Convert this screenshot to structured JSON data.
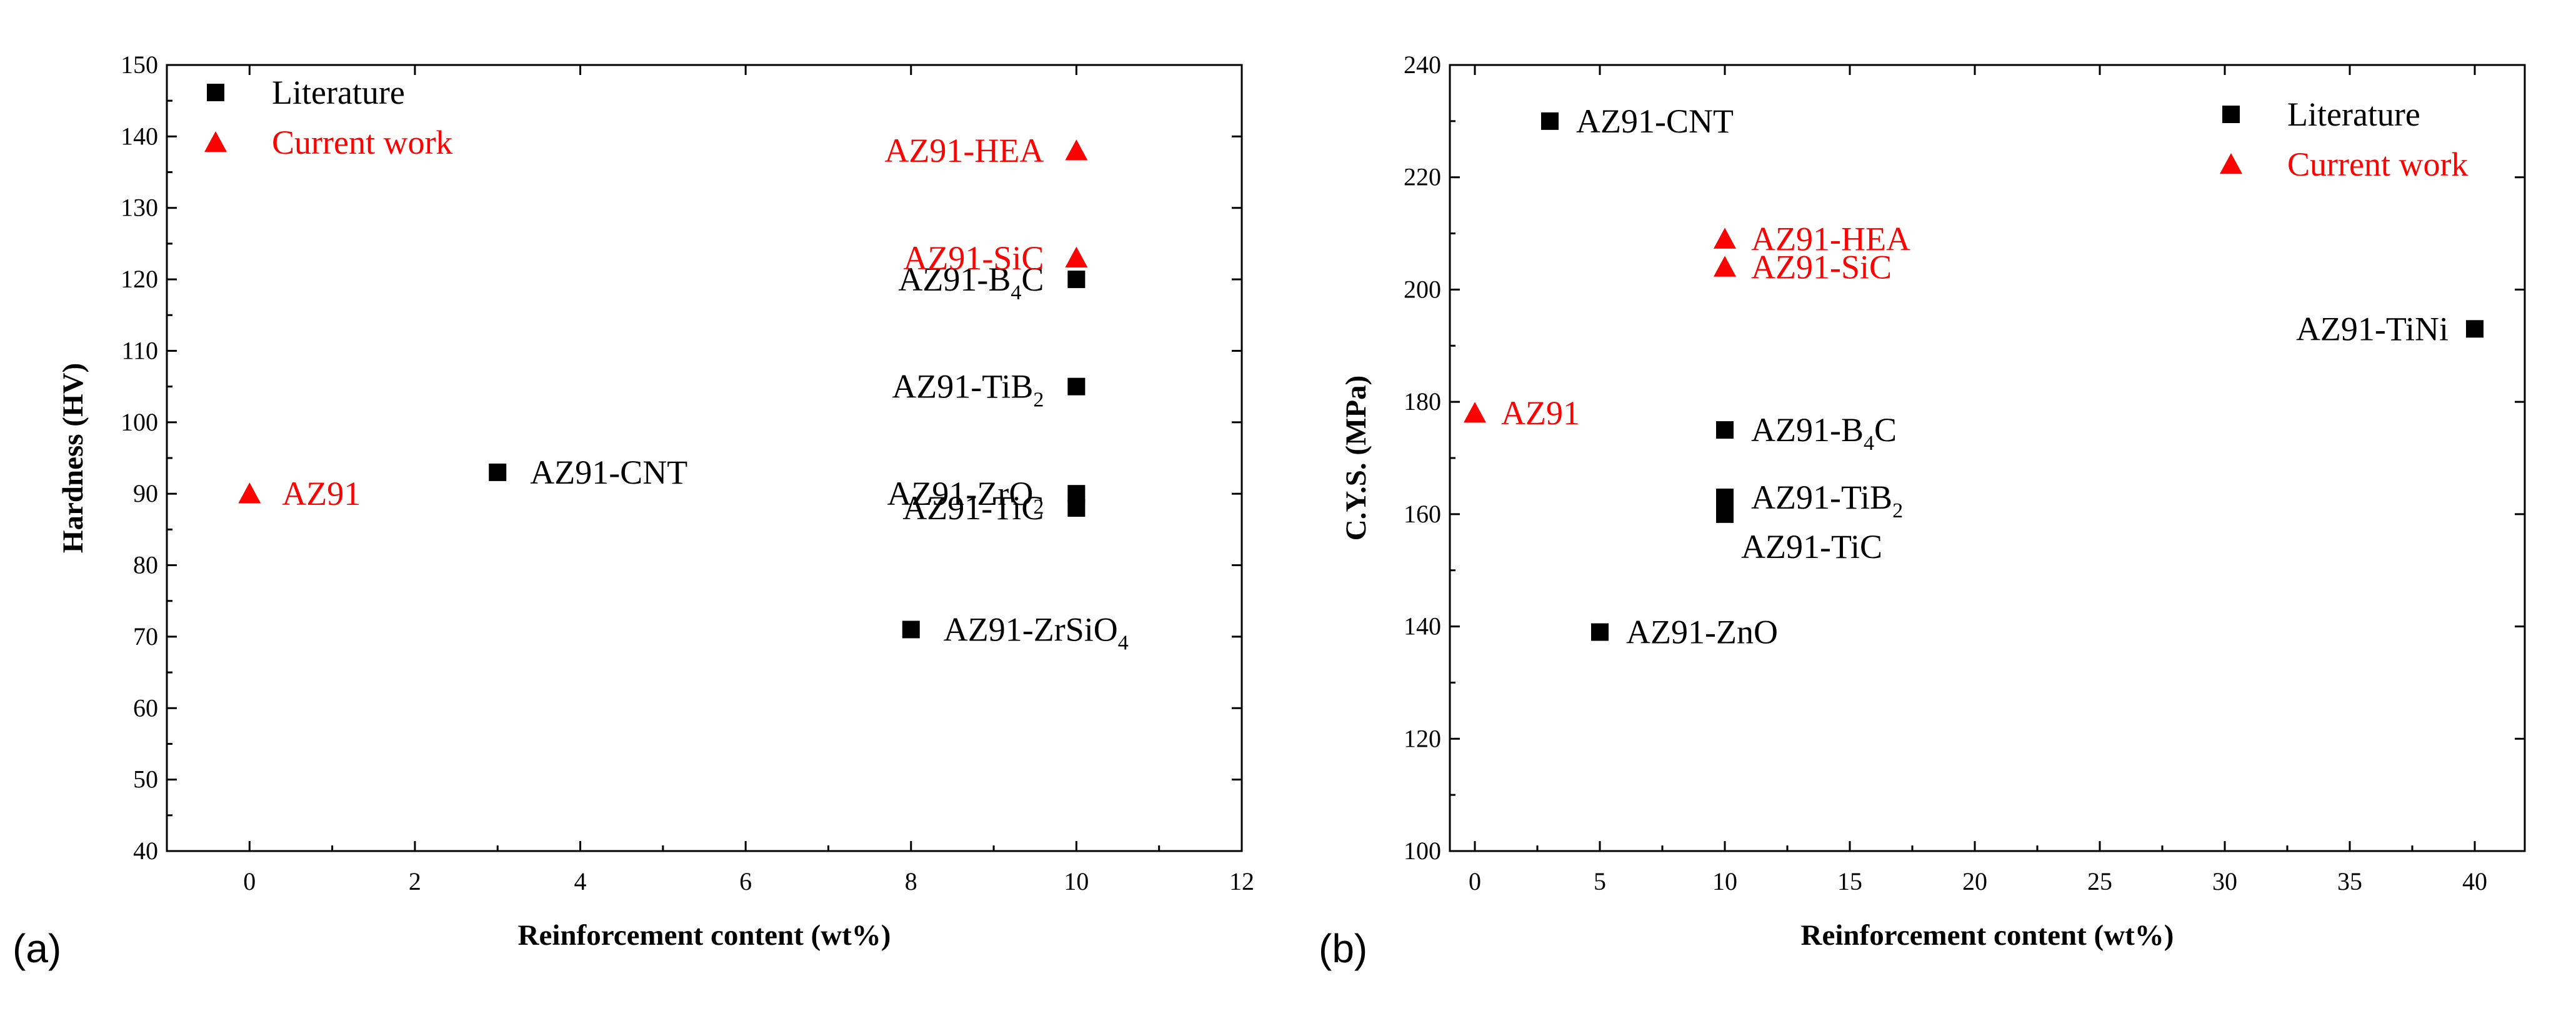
{
  "chart_data": [
    {
      "panel": "(a)",
      "type": "scatter",
      "xlabel": "Reinforcement content (wt%)",
      "ylabel": "Hardness (HV)",
      "xlim": [
        -1,
        12
      ],
      "ylim": [
        40,
        150
      ],
      "xticks": [
        0,
        2,
        4,
        6,
        8,
        10,
        12
      ],
      "yticks": [
        40,
        50,
        60,
        70,
        80,
        90,
        100,
        110,
        120,
        130,
        140,
        150
      ],
      "legend": {
        "position": "top-left",
        "entries": [
          {
            "label": "Literature",
            "marker": "square",
            "color": "#000000"
          },
          {
            "label": "Current work",
            "marker": "triangle",
            "color": "#ff0000"
          }
        ]
      },
      "series": [
        {
          "name": "Literature",
          "marker": "square",
          "color": "#000000",
          "points": [
            {
              "x": 3,
              "y": 93,
              "base": "AZ91-CNT",
              "sub": "",
              "suffix": "",
              "label_side": "right"
            },
            {
              "x": 10,
              "y": 120,
              "base": "AZ91-B",
              "sub": "4",
              "suffix": "C",
              "label_side": "left"
            },
            {
              "x": 10,
              "y": 105,
              "base": "AZ91-TiB",
              "sub": "2",
              "suffix": "",
              "label_side": "left"
            },
            {
              "x": 10,
              "y": 90,
              "base": "AZ91-ZrO",
              "sub": "2",
              "suffix": "",
              "label_side": "left"
            },
            {
              "x": 10,
              "y": 88,
              "base": "AZ91-TiC",
              "sub": "",
              "suffix": "",
              "label_side": "left"
            },
            {
              "x": 8,
              "y": 71,
              "base": "AZ91-ZrSiO",
              "sub": "4",
              "suffix": "",
              "label_side": "right"
            }
          ]
        },
        {
          "name": "Current work",
          "marker": "triangle",
          "color": "#ff0000",
          "points": [
            {
              "x": 0,
              "y": 90,
              "base": "AZ91",
              "sub": "",
              "suffix": "",
              "label_side": "right"
            },
            {
              "x": 10,
              "y": 138,
              "base": "AZ91-HEA",
              "sub": "",
              "suffix": "",
              "label_side": "left"
            },
            {
              "x": 10,
              "y": 123,
              "base": "AZ91-SiC",
              "sub": "",
              "suffix": "",
              "label_side": "left"
            }
          ]
        }
      ]
    },
    {
      "panel": "(b)",
      "type": "scatter",
      "xlabel": "Reinforcement content (wt%)",
      "ylabel": "C.Y.S. (MPa)",
      "xlim": [
        -1,
        42
      ],
      "ylim": [
        100,
        240
      ],
      "xticks": [
        0,
        5,
        10,
        15,
        20,
        25,
        30,
        35,
        40
      ],
      "yticks": [
        100,
        120,
        140,
        160,
        180,
        200,
        220,
        240
      ],
      "legend": {
        "position": "top-right",
        "entries": [
          {
            "label": "Literature",
            "marker": "square",
            "color": "#000000"
          },
          {
            "label": "Current work",
            "marker": "triangle",
            "color": "#ff0000"
          }
        ]
      },
      "series": [
        {
          "name": "Literature",
          "marker": "square",
          "color": "#000000",
          "points": [
            {
              "x": 3,
              "y": 230,
              "base": "AZ91-CNT",
              "sub": "",
              "suffix": "",
              "label_side": "right"
            },
            {
              "x": 40,
              "y": 193,
              "base": "AZ91-TiNi",
              "sub": "",
              "suffix": "",
              "label_side": "left"
            },
            {
              "x": 10,
              "y": 175,
              "base": "AZ91-B",
              "sub": "4",
              "suffix": "C",
              "label_side": "right"
            },
            {
              "x": 10,
              "y": 163,
              "base": "AZ91-TiB",
              "sub": "2",
              "suffix": "",
              "label_side": "right"
            },
            {
              "x": 10,
              "y": 160,
              "base": "AZ91-TiC",
              "sub": "",
              "suffix": "",
              "label_side": "below"
            },
            {
              "x": 5,
              "y": 139,
              "base": "AZ91-ZnO",
              "sub": "",
              "suffix": "",
              "label_side": "right"
            }
          ]
        },
        {
          "name": "Current work",
          "marker": "triangle",
          "color": "#ff0000",
          "points": [
            {
              "x": 0,
              "y": 178,
              "base": "AZ91",
              "sub": "",
              "suffix": "",
              "label_side": "right"
            },
            {
              "x": 10,
              "y": 209,
              "base": "AZ91-HEA",
              "sub": "",
              "suffix": "",
              "label_side": "right"
            },
            {
              "x": 10,
              "y": 204,
              "base": "AZ91-SiC",
              "sub": "",
              "suffix": "",
              "label_side": "right"
            }
          ]
        }
      ]
    }
  ]
}
